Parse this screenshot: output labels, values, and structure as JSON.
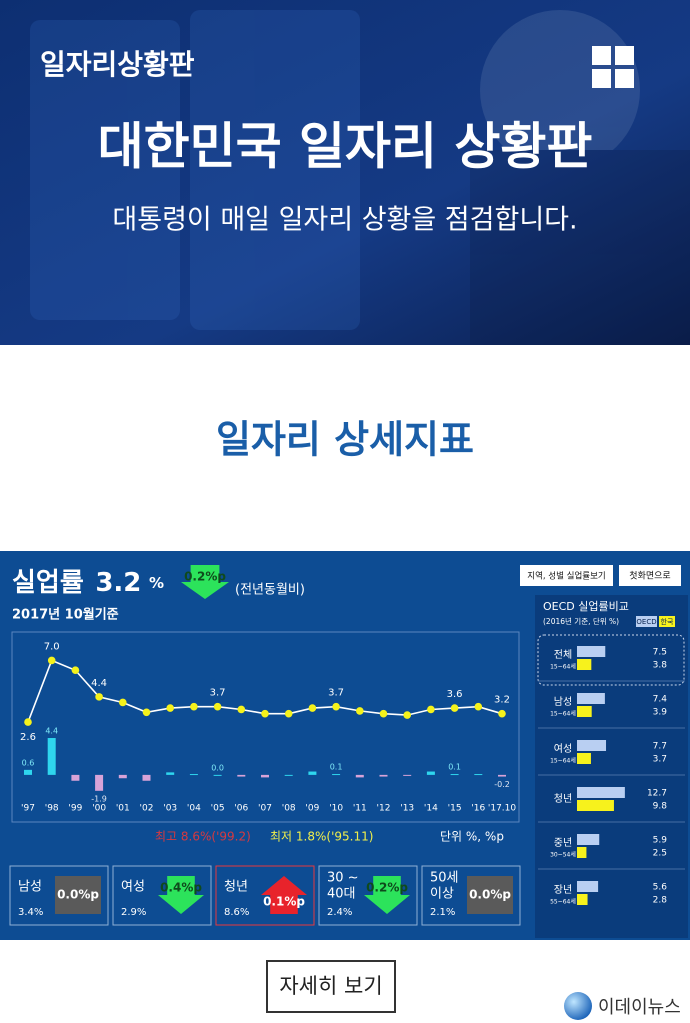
{
  "header": {
    "brand": "일자리상황판",
    "title": "대한민국 일자리 상황판",
    "subtitle": "대통령이 매일 일자리 상황을 점검합니다."
  },
  "section": {
    "title": "일자리 상세지표"
  },
  "dashboard": {
    "indicator": "실업률",
    "value": 3.2,
    "unit": "%",
    "change": "0.2%p",
    "trend": "down",
    "change_note": "(전년동월비)",
    "as_of": "2017년 10월기준",
    "buttons": [
      "지역, 성별 실업률보기",
      "첫화면으로"
    ],
    "groups": [
      {
        "name": [
          "남성"
        ],
        "rate": "3.4%",
        "change": "0.0%p",
        "trend": "flat"
      },
      {
        "name": [
          "여성"
        ],
        "rate": "2.9%",
        "change": "0.4%p",
        "trend": "down"
      },
      {
        "name": [
          "청년"
        ],
        "rate": "8.6%",
        "change": "0.1%p",
        "trend": "up"
      },
      {
        "name": [
          "30 ~",
          "40대"
        ],
        "rate": "2.4%",
        "change": "0.2%p",
        "trend": "down"
      },
      {
        "name": [
          "50세",
          "이상"
        ],
        "rate": "2.1%",
        "change": "0.0%p",
        "trend": "flat"
      }
    ]
  },
  "chart_data": [
    {
      "type": "line",
      "categories": [
        "'97",
        "'98",
        "'99",
        "'00",
        "'01",
        "'02",
        "'03",
        "'04",
        "'05",
        "'06",
        "'07",
        "'08",
        "'09",
        "'10",
        "'11",
        "'12",
        "'13",
        "'14",
        "'15",
        "'16",
        "'17.10"
      ],
      "series": [
        {
          "type": "line",
          "color": "#ffffff",
          "marker_color": "#f5f21b",
          "values": [
            2.6,
            7.0,
            6.3,
            4.4,
            4.0,
            3.3,
            3.6,
            3.7,
            3.7,
            3.5,
            3.2,
            3.2,
            3.6,
            3.7,
            3.4,
            3.2,
            3.1,
            3.5,
            3.6,
            3.7,
            3.2
          ],
          "value_labels": [
            "2.6",
            "7.0",
            null,
            "4.4",
            null,
            null,
            null,
            null,
            "3.7",
            null,
            null,
            null,
            null,
            "3.7",
            null,
            null,
            null,
            null,
            "3.6",
            null,
            "3.2"
          ]
        },
        {
          "type": "bar",
          "axis": "y2",
          "color": "#2fd6ee",
          "negative_color": "#d7a3d8",
          "values": [
            0.6,
            4.4,
            -0.7,
            -1.9,
            -0.4,
            -0.7,
            0.3,
            0.1,
            0.0,
            -0.2,
            -0.3,
            0.0,
            0.4,
            0.1,
            -0.3,
            -0.2,
            -0.1,
            0.4,
            0.1,
            0.1,
            -0.2
          ],
          "value_labels": [
            "0.6",
            "4.4",
            null,
            "-1.9",
            null,
            null,
            null,
            null,
            "0.0",
            null,
            null,
            null,
            null,
            "0.1",
            null,
            null,
            null,
            null,
            "0.1",
            null,
            "-0.2"
          ]
        }
      ],
      "ylim": [
        -2.6,
        8.1
      ],
      "y2lim": [
        -2.4,
        15.5
      ],
      "notes": [
        {
          "text": "최고 8.6%('99.2)",
          "color": "#d8393f"
        },
        {
          "text": "최저 1.8%('95.11)",
          "color": "#f1ef4b"
        },
        {
          "text": "단위 %, %p",
          "color": "#ffffff"
        }
      ]
    },
    {
      "type": "hbar",
      "title": "OECD 실업률비교",
      "subtitle": "(2016년 기준, 단위 %)",
      "categories": [
        "전체",
        "남성",
        "여성",
        "청년",
        "중년",
        "장년"
      ],
      "category_notes": [
        "15~64세",
        "15~64세",
        "15~64세",
        null,
        "30~54세",
        "55~64세"
      ],
      "series": [
        {
          "name": "OECD",
          "color": "#b9cff2",
          "values": [
            7.5,
            7.4,
            7.7,
            12.7,
            5.9,
            5.6
          ]
        },
        {
          "name": "한국",
          "color": "#f7f21c",
          "values": [
            3.8,
            3.9,
            3.7,
            9.8,
            2.5,
            2.8
          ]
        }
      ],
      "xlim": [
        0,
        13
      ]
    }
  ],
  "footer": {
    "button": "자세히 보기",
    "logo": "이데이뉴스"
  }
}
